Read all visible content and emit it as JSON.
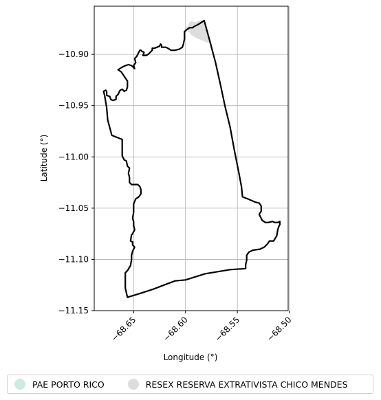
{
  "chart_data": {
    "type": "map",
    "xlabel": "Longitude (°)",
    "ylabel": "Latitude (°)",
    "xlim": [
      -68.688,
      -68.501
    ],
    "ylim": [
      -11.15,
      -10.853
    ],
    "xticks": [
      {
        "value": -68.65,
        "label": "−68.65"
      },
      {
        "value": -68.6,
        "label": "−68.60"
      },
      {
        "value": -68.55,
        "label": "−68.55"
      },
      {
        "value": -68.5,
        "label": "−68.50"
      }
    ],
    "yticks": [
      {
        "value": -10.9,
        "label": "−10.90"
      },
      {
        "value": -10.95,
        "label": "−10.95"
      },
      {
        "value": -11.0,
        "label": "−11.00"
      },
      {
        "value": -11.05,
        "label": "−11.05"
      },
      {
        "value": -11.1,
        "label": "−11.10"
      },
      {
        "value": -11.15,
        "label": "−11.15"
      }
    ],
    "grid": true,
    "legend_position": "bottom",
    "series": [
      {
        "name": "PAE PORTO RICO",
        "color": "#cdebe0",
        "fill": "#cdebe0",
        "stroke": "#000000",
        "coordinates": [
          [
            -68.582,
            -10.867
          ],
          [
            -68.576,
            -10.889
          ],
          [
            -68.571,
            -10.908
          ],
          [
            -68.566,
            -10.931
          ],
          [
            -68.562,
            -10.95
          ],
          [
            -68.557,
            -10.971
          ],
          [
            -68.553,
            -10.993
          ],
          [
            -68.549,
            -11.013
          ],
          [
            -68.546,
            -11.029
          ],
          [
            -68.545,
            -11.039
          ],
          [
            -68.54,
            -11.041
          ],
          [
            -68.533,
            -11.044
          ],
          [
            -68.529,
            -11.045
          ],
          [
            -68.527,
            -11.048
          ],
          [
            -68.527,
            -11.053
          ],
          [
            -68.529,
            -11.056
          ],
          [
            -68.526,
            -11.062
          ],
          [
            -68.523,
            -11.064
          ],
          [
            -68.52,
            -11.064
          ],
          [
            -68.516,
            -11.063
          ],
          [
            -68.514,
            -11.064
          ],
          [
            -68.511,
            -11.064
          ],
          [
            -68.509,
            -11.063
          ],
          [
            -68.509,
            -11.066
          ],
          [
            -68.51,
            -11.068
          ],
          [
            -68.511,
            -11.071
          ],
          [
            -68.512,
            -11.077
          ],
          [
            -68.515,
            -11.082
          ],
          [
            -68.519,
            -11.082
          ],
          [
            -68.521,
            -11.085
          ],
          [
            -68.524,
            -11.088
          ],
          [
            -68.528,
            -11.09
          ],
          [
            -68.535,
            -11.091
          ],
          [
            -68.539,
            -11.093
          ],
          [
            -68.541,
            -11.096
          ],
          [
            -68.541,
            -11.101
          ],
          [
            -68.542,
            -11.105
          ],
          [
            -68.542,
            -11.109
          ],
          [
            -68.557,
            -11.11
          ],
          [
            -68.581,
            -11.114
          ],
          [
            -68.6,
            -11.12
          ],
          [
            -68.61,
            -11.121
          ],
          [
            -68.618,
            -11.124
          ],
          [
            -68.631,
            -11.129
          ],
          [
            -68.643,
            -11.133
          ],
          [
            -68.656,
            -11.137
          ],
          [
            -68.658,
            -11.128
          ],
          [
            -68.658,
            -11.119
          ],
          [
            -68.658,
            -11.113
          ],
          [
            -68.656,
            -11.111
          ],
          [
            -68.653,
            -11.106
          ],
          [
            -68.652,
            -11.1
          ],
          [
            -68.652,
            -11.096
          ],
          [
            -68.651,
            -11.092
          ],
          [
            -68.649,
            -11.088
          ],
          [
            -68.651,
            -11.086
          ],
          [
            -68.651,
            -11.083
          ],
          [
            -68.653,
            -11.082
          ],
          [
            -68.652,
            -11.076
          ],
          [
            -68.651,
            -11.075
          ],
          [
            -68.649,
            -11.071
          ],
          [
            -68.65,
            -11.067
          ],
          [
            -68.65,
            -11.063
          ],
          [
            -68.651,
            -11.06
          ],
          [
            -68.65,
            -11.054
          ],
          [
            -68.65,
            -11.046
          ],
          [
            -68.648,
            -11.041
          ],
          [
            -68.645,
            -11.039
          ],
          [
            -68.643,
            -11.036
          ],
          [
            -68.643,
            -11.032
          ],
          [
            -68.644,
            -11.029
          ],
          [
            -68.646,
            -11.027
          ],
          [
            -68.652,
            -11.027
          ],
          [
            -68.654,
            -11.025
          ],
          [
            -68.654,
            -11.02
          ],
          [
            -68.655,
            -11.016
          ],
          [
            -68.654,
            -11.011
          ],
          [
            -68.656,
            -11.009
          ],
          [
            -68.657,
            -11.004
          ],
          [
            -68.659,
            -11.003
          ],
          [
            -68.661,
            -10.999
          ],
          [
            -68.661,
            -10.983
          ],
          [
            -68.671,
            -10.979
          ],
          [
            -68.675,
            -10.964
          ],
          [
            -68.676,
            -10.952
          ],
          [
            -68.678,
            -10.94
          ],
          [
            -68.679,
            -10.936
          ],
          [
            -68.677,
            -10.935
          ],
          [
            -68.676,
            -10.936
          ],
          [
            -68.676,
            -10.94
          ],
          [
            -68.673,
            -10.941
          ],
          [
            -68.672,
            -10.944
          ],
          [
            -68.67,
            -10.945
          ],
          [
            -68.667,
            -10.944
          ],
          [
            -68.667,
            -10.941
          ],
          [
            -68.665,
            -10.939
          ],
          [
            -68.663,
            -10.935
          ],
          [
            -68.661,
            -10.934
          ],
          [
            -68.659,
            -10.936
          ],
          [
            -68.657,
            -10.935
          ],
          [
            -68.656,
            -10.932
          ],
          [
            -68.656,
            -10.926
          ],
          [
            -68.658,
            -10.923
          ],
          [
            -68.66,
            -10.92
          ],
          [
            -68.662,
            -10.917
          ],
          [
            -68.665,
            -10.915
          ],
          [
            -68.662,
            -10.913
          ],
          [
            -68.658,
            -10.911
          ],
          [
            -68.655,
            -10.91
          ],
          [
            -68.652,
            -10.911
          ],
          [
            -68.649,
            -10.914
          ],
          [
            -68.65,
            -10.911
          ],
          [
            -68.648,
            -10.908
          ],
          [
            -68.649,
            -10.904
          ],
          [
            -68.647,
            -10.902
          ],
          [
            -68.645,
            -10.898
          ],
          [
            -68.644,
            -10.896
          ],
          [
            -68.643,
            -10.896
          ],
          [
            -68.642,
            -10.897
          ],
          [
            -68.64,
            -10.898
          ],
          [
            -68.641,
            -10.901
          ],
          [
            -68.638,
            -10.901
          ],
          [
            -68.636,
            -10.9
          ],
          [
            -68.633,
            -10.897
          ],
          [
            -68.632,
            -10.896
          ],
          [
            -68.632,
            -10.894
          ],
          [
            -68.63,
            -10.894
          ],
          [
            -68.625,
            -10.892
          ],
          [
            -68.624,
            -10.89
          ],
          [
            -68.623,
            -10.891
          ],
          [
            -68.623,
            -10.893
          ],
          [
            -68.621,
            -10.893
          ],
          [
            -68.619,
            -10.893
          ],
          [
            -68.617,
            -10.894
          ],
          [
            -68.614,
            -10.896
          ],
          [
            -68.61,
            -10.896
          ],
          [
            -68.606,
            -10.895
          ],
          [
            -68.603,
            -10.893
          ],
          [
            -68.602,
            -10.89
          ],
          [
            -68.601,
            -10.885
          ],
          [
            -68.601,
            -10.878
          ],
          [
            -68.599,
            -10.876
          ],
          [
            -68.596,
            -10.874
          ],
          [
            -68.593,
            -10.874
          ],
          [
            -68.592,
            -10.873
          ],
          [
            -68.588,
            -10.871
          ],
          [
            -68.585,
            -10.869
          ],
          [
            -68.582,
            -10.867
          ]
        ]
      },
      {
        "name": "RESEX RESERVA EXTRATIVISTA CHICO MENDES",
        "color": "#dddddd",
        "fill": "#dddddd",
        "stroke": "#dddddd",
        "coordinates": [
          [
            -68.582,
            -10.867
          ],
          [
            -68.577,
            -10.889
          ],
          [
            -68.582,
            -10.887
          ],
          [
            -68.589,
            -10.884
          ],
          [
            -68.594,
            -10.881
          ],
          [
            -68.597,
            -10.877
          ],
          [
            -68.599,
            -10.874
          ],
          [
            -68.597,
            -10.872
          ],
          [
            -68.596,
            -10.869
          ],
          [
            -68.594,
            -10.868
          ],
          [
            -68.591,
            -10.869
          ],
          [
            -68.588,
            -10.868
          ],
          [
            -68.585,
            -10.867
          ],
          [
            -68.582,
            -10.867
          ]
        ]
      }
    ]
  }
}
